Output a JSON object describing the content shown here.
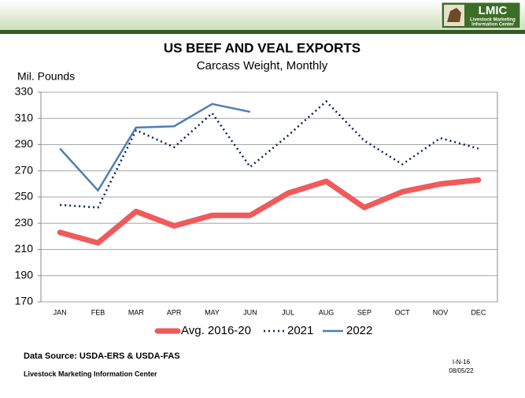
{
  "logo": {
    "title": "LMIC",
    "line1": "Livestock Marketing",
    "line2": "Information Center"
  },
  "chart_data": {
    "type": "line",
    "title": "US BEEF AND VEAL EXPORTS",
    "subtitle": "Carcass Weight, Monthly",
    "y_label": "Mil. Pounds",
    "categories": [
      "JAN",
      "FEB",
      "MAR",
      "APR",
      "MAY",
      "JUN",
      "JUL",
      "AUG",
      "SEP",
      "OCT",
      "NOV",
      "DEC"
    ],
    "series": [
      {
        "name": "Avg. 2016-20",
        "color": "#f05a5a",
        "style": "solid-thick",
        "values": [
          223,
          215,
          239,
          228,
          236,
          236,
          253,
          262,
          242,
          254,
          260,
          263
        ]
      },
      {
        "name": "2021",
        "color": "#0b1f5c",
        "style": "dotted",
        "values": [
          244,
          242,
          301,
          288,
          314,
          273,
          297,
          323,
          293,
          275,
          295,
          287
        ]
      },
      {
        "name": "2022",
        "color": "#4d7fb5",
        "style": "solid",
        "values": [
          287,
          255,
          303,
          304,
          321,
          315,
          null,
          null,
          null,
          null,
          null,
          null
        ]
      }
    ],
    "ylim": [
      170,
      330
    ],
    "yticks": [
      170,
      190,
      210,
      230,
      250,
      270,
      290,
      310,
      330
    ],
    "grid": true,
    "legend": "bottom"
  },
  "source": "Data Source:  USDA-ERS & USDA-FAS",
  "footer_org": "Livestock Marketing Information Center",
  "slide_id": "I-N-16",
  "date": "08/05/22"
}
